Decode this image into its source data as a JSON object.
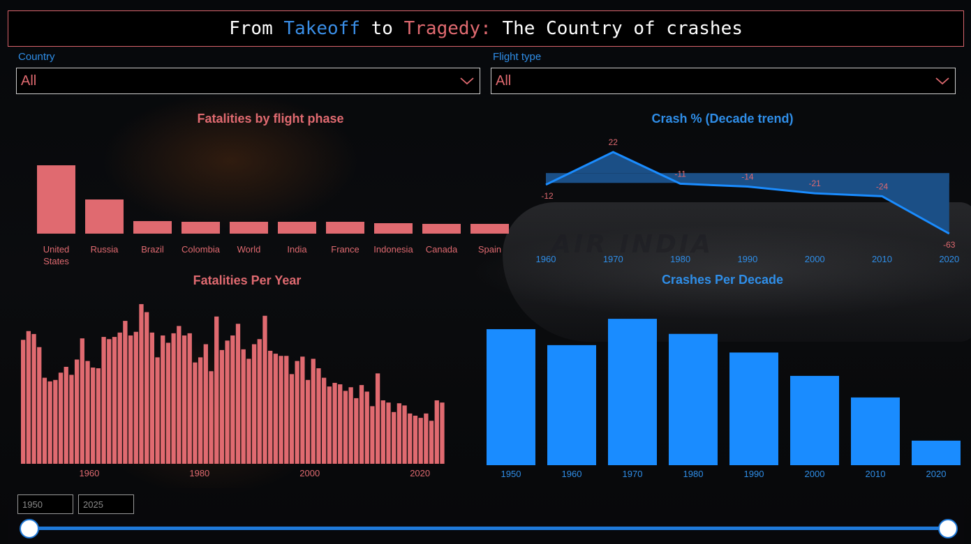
{
  "header": {
    "title_part1": "From ",
    "title_takeoff": "Takeoff",
    "title_part2": " to ",
    "title_tragedy": "Tragedy:",
    "title_part3": " The Country of crashes"
  },
  "filters": {
    "country_label": "Country",
    "country_value": "All",
    "flight_type_label": "Flight type",
    "flight_type_value": "All"
  },
  "slicer": {
    "start_year": "1950",
    "end_year": "2025",
    "range_fraction": [
      0,
      1
    ]
  },
  "colors": {
    "accent_red": "#e06a70",
    "accent_blue": "#1a8cff",
    "trend_line": "#1a8cff",
    "trend_area": "#1b4f86"
  },
  "chart_data": [
    {
      "id": "fatalities_by_phase",
      "type": "bar",
      "title": "Fatalities by flight phase",
      "categories": [
        "United States",
        "Russia",
        "Brazil",
        "Colombia",
        "World",
        "India",
        "France",
        "Indonesia",
        "Canada",
        "Spain"
      ],
      "category_lines": [
        [
          "United",
          "States"
        ],
        [
          "Russia"
        ],
        [
          "Brazil"
        ],
        [
          "Colombia"
        ],
        [
          "World"
        ],
        [
          "India"
        ],
        [
          "France"
        ],
        [
          "Indonesia"
        ],
        [
          "Canada"
        ],
        [
          "Spain"
        ]
      ],
      "values": [
        98,
        49,
        18,
        17,
        17,
        17,
        17,
        15,
        14,
        14
      ],
      "ylim": [
        0,
        100
      ],
      "color": "#e06a70",
      "grid": false
    },
    {
      "id": "crash_pct_decade_trend",
      "type": "area",
      "title": "Crash % (Decade trend)",
      "x": [
        "1960",
        "1970",
        "1980",
        "1990",
        "2000",
        "2010",
        "2020"
      ],
      "values": [
        -12,
        22,
        -11,
        -14,
        -21,
        -24,
        -63
      ],
      "baseline": 0,
      "ylim": [
        -63,
        22
      ],
      "color": "#1a8cff",
      "area_color": "#1b4f86",
      "grid": false
    },
    {
      "id": "fatalities_per_year",
      "type": "bar",
      "title": "Fatalities Per Year",
      "x_start": 1948,
      "x_end": 2025,
      "tick_labels": [
        "1960",
        "1980",
        "2000",
        "2020"
      ],
      "tick_values": [
        1960,
        1980,
        2000,
        2020
      ],
      "values": [
        1700,
        1820,
        1780,
        1600,
        1180,
        1130,
        1150,
        1250,
        1330,
        1220,
        1430,
        1720,
        1410,
        1320,
        1310,
        1740,
        1710,
        1740,
        1800,
        1960,
        1760,
        1810,
        2190,
        2080,
        1800,
        1460,
        1760,
        1660,
        1790,
        1890,
        1760,
        1790,
        1390,
        1460,
        1640,
        1270,
        2020,
        1560,
        1690,
        1760,
        1920,
        1570,
        1440,
        1640,
        1710,
        2030,
        1550,
        1510,
        1480,
        1480,
        1230,
        1410,
        1470,
        1150,
        1440,
        1310,
        1180,
        1060,
        1110,
        1090,
        1000,
        1050,
        900,
        1080,
        990,
        790,
        1240,
        870,
        840,
        710,
        830,
        800,
        690,
        660,
        630,
        690,
        590,
        870,
        840
      ],
      "ylim": [
        0,
        2200
      ],
      "color": "#e06a70",
      "grid": false
    },
    {
      "id": "crashes_per_decade",
      "type": "bar",
      "title": "Crashes Per Decade",
      "categories": [
        "1950",
        "1960",
        "1970",
        "1980",
        "1990",
        "2000",
        "2010",
        "2020"
      ],
      "values": [
        920,
        812,
        990,
        888,
        762,
        604,
        458,
        166
      ],
      "ylim": [
        0,
        1000
      ],
      "color": "#1a8cff",
      "grid": false
    }
  ]
}
